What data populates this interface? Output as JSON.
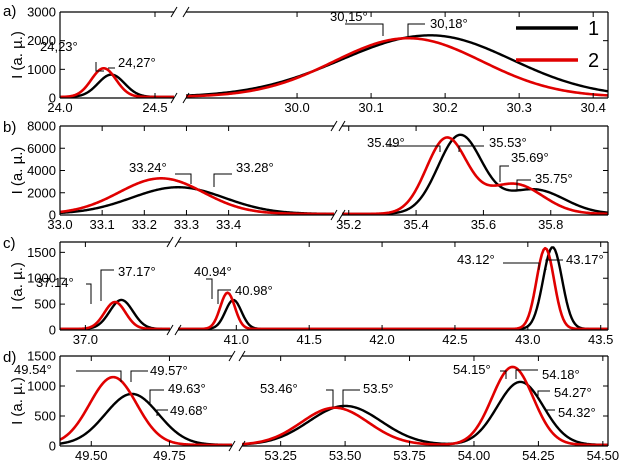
{
  "chart_data": {
    "type": "line",
    "legend": {
      "placement": "top-right",
      "entries": [
        {
          "label": "1",
          "color": "#000000"
        },
        {
          "label": "2",
          "color": "#e00000"
        }
      ]
    },
    "series_colors": {
      "1": "#000000",
      "2": "#e00000"
    },
    "panels": [
      {
        "label": "a)",
        "ylabel": "I (a. µ.)",
        "ylim": [
          0,
          3000
        ],
        "yticks": [
          "0",
          "1000",
          "2000",
          "3000"
        ],
        "segments": [
          {
            "xlim": [
              24.0,
              24.6
            ],
            "xticks": [
              "24.0",
              "24.5"
            ],
            "peaks": {
              "1": [
                {
                  "x": 24.27,
                  "h": 780,
                  "w": 0.07
                }
              ],
              "2": [
                {
                  "x": 24.23,
                  "h": 1000,
                  "w": 0.065
                }
              ]
            }
          },
          {
            "xlim": [
              29.85,
              30.42
            ],
            "xticks": [
              "30.0",
              "30.1",
              "30.2",
              "30.3",
              "30.4"
            ],
            "peaks": {
              "1": [
                {
                  "x": 30.18,
                  "h": 2150,
                  "wl": 0.12,
                  "wr": 0.11
                }
              ],
              "2": [
                {
                  "x": 30.15,
                  "h": 2050,
                  "wl": 0.1,
                  "wr": 0.1
                }
              ]
            }
          }
        ],
        "annotations": [
          {
            "text": "24,23°"
          },
          {
            "text": "24,27°"
          },
          {
            "text": "30,15°"
          },
          {
            "text": "30,18°"
          }
        ]
      },
      {
        "label": "b)",
        "ylabel": "I (a. µ.)",
        "ylim": [
          0,
          8000
        ],
        "yticks": [
          "0",
          "2000",
          "4000",
          "6000",
          "8000"
        ],
        "segments": [
          {
            "xlim": [
              33.0,
              33.65
            ],
            "xticks": [
              "33.0",
              "33.1",
              "33.2",
              "33.3",
              "33.4"
            ],
            "peaks": {
              "1": [
                {
                  "x": 33.28,
                  "h": 2400,
                  "w": 0.11
                }
              ],
              "2": [
                {
                  "x": 33.24,
                  "h": 3200,
                  "w": 0.1
                }
              ]
            }
          },
          {
            "xlim": [
              35.18,
              35.97
            ],
            "xticks": [
              "35.2",
              "35.4",
              "35.6",
              "35.8"
            ],
            "peaks": {
              "1": [
                {
                  "x": 35.53,
                  "h": 7000,
                  "w": 0.065
                },
                {
                  "x": 35.75,
                  "h": 2200,
                  "w": 0.09
                }
              ],
              "2": [
                {
                  "x": 35.49,
                  "h": 6700,
                  "w": 0.06
                },
                {
                  "x": 35.69,
                  "h": 2700,
                  "w": 0.085
                }
              ]
            }
          }
        ],
        "annotations": [
          {
            "text": "33.24°"
          },
          {
            "text": "33.28°"
          },
          {
            "text": "35.49°"
          },
          {
            "text": "35.53°"
          },
          {
            "text": "35.69°"
          },
          {
            "text": "35.75°"
          }
        ]
      },
      {
        "label": "c)",
        "ylabel": "I (a. µ.)",
        "ylim": [
          0,
          1700
        ],
        "yticks": [
          "0",
          "500",
          "1000",
          "1500"
        ],
        "segments": [
          {
            "xlim": [
              36.88,
              37.4
            ],
            "xticks": [
              "37.0"
            ],
            "peaks": {
              "1": [
                {
                  "x": 37.17,
                  "h": 560,
                  "w": 0.055
                }
              ],
              "2": [
                {
                  "x": 37.14,
                  "h": 520,
                  "w": 0.05
                }
              ]
            }
          },
          {
            "xlim": [
              40.6,
              43.55
            ],
            "xticks": [
              "41.0",
              "41.5",
              "42.0",
              "42.5",
              "43.0",
              "43.5"
            ],
            "peaks": {
              "1": [
                {
                  "x": 40.98,
                  "h": 560,
                  "w": 0.055
                },
                {
                  "x": 43.17,
                  "h": 1580,
                  "w": 0.065
                }
              ],
              "2": [
                {
                  "x": 40.94,
                  "h": 700,
                  "w": 0.05
                },
                {
                  "x": 43.12,
                  "h": 1560,
                  "w": 0.06
                }
              ]
            }
          }
        ],
        "annotations": [
          {
            "text": "37.14°"
          },
          {
            "text": "37.17°"
          },
          {
            "text": "40.94°"
          },
          {
            "text": "40.98°"
          },
          {
            "text": "43.12°"
          },
          {
            "text": "43.17°"
          }
        ]
      },
      {
        "label": "d)",
        "ylabel": "I (a. µ.)",
        "ylim": [
          0,
          1500
        ],
        "yticks": [
          "0",
          "500",
          "1000",
          "1500"
        ],
        "segments": [
          {
            "xlim": [
              49.4,
              49.95
            ],
            "xticks": [
              "49.50",
              "49.75"
            ],
            "peaks": {
              "1": [
                {
                  "x": 49.63,
                  "h": 850,
                  "w": 0.085
                }
              ],
              "2": [
                {
                  "x": 49.57,
                  "h": 1130,
                  "w": 0.075
                }
              ]
            }
          },
          {
            "xlim": [
              53.1,
              54.52
            ],
            "xticks": [
              "53.25",
              "53.50",
              "53.75",
              "54.00",
              "54.25",
              "54.50"
            ],
            "peaks": {
              "1": [
                {
                  "x": 53.5,
                  "h": 650,
                  "w": 0.14
                },
                {
                  "x": 54.18,
                  "h": 1050,
                  "w": 0.09
                }
              ],
              "2": [
                {
                  "x": 53.46,
                  "h": 620,
                  "w": 0.13
                },
                {
                  "x": 54.15,
                  "h": 1300,
                  "w": 0.08
                }
              ]
            }
          }
        ],
        "annotations": [
          {
            "text": "49.54°"
          },
          {
            "text": "49.57°"
          },
          {
            "text": "49.63°"
          },
          {
            "text": "49.68°"
          },
          {
            "text": "53.46°"
          },
          {
            "text": "53.5°"
          },
          {
            "text": "54.15°"
          },
          {
            "text": "54.18°"
          },
          {
            "text": "54.27°"
          },
          {
            "text": "54.32°"
          }
        ]
      }
    ]
  }
}
